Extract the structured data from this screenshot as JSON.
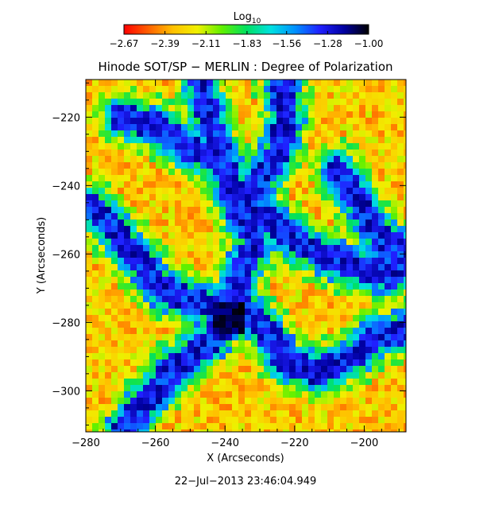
{
  "chart_data": {
    "type": "heatmap",
    "title": "Hinode SOT/SP − MERLIN : Degree of Polarization",
    "xlabel": "X (Arcseconds)",
    "ylabel": "Y (Arcseconds)",
    "xlim": [
      -280,
      -188
    ],
    "ylim": [
      -312,
      -209
    ],
    "xticks": [
      -280,
      -260,
      -240,
      -220,
      -200
    ],
    "xtick_labels": [
      "−280",
      "−260",
      "−240",
      "−220",
      "−200"
    ],
    "yticks": [
      -220,
      -240,
      -260,
      -280,
      -300
    ],
    "ytick_labels": [
      "−220",
      "−240",
      "−260",
      "−280",
      "−300"
    ],
    "timestamp": "22−Jul−2013 23:46:04.949",
    "colorbar": {
      "label_main": "Log",
      "label_sub": "10",
      "range": [
        -2.67,
        -1.0
      ],
      "tick_values": [
        -2.67,
        -2.39,
        -2.11,
        -1.83,
        -1.56,
        -1.28,
        -1.0
      ],
      "tick_labels": [
        "−2.67",
        "−2.39",
        "−2.11",
        "−1.83",
        "−1.56",
        "−1.28",
        "−1.00"
      ],
      "colormap": [
        "#ff0000",
        "#ff6000",
        "#ffc000",
        "#f0f000",
        "#60f000",
        "#00e060",
        "#00e0e0",
        "#0090ff",
        "#2020ff",
        "#0000a0",
        "#000000"
      ]
    }
  }
}
